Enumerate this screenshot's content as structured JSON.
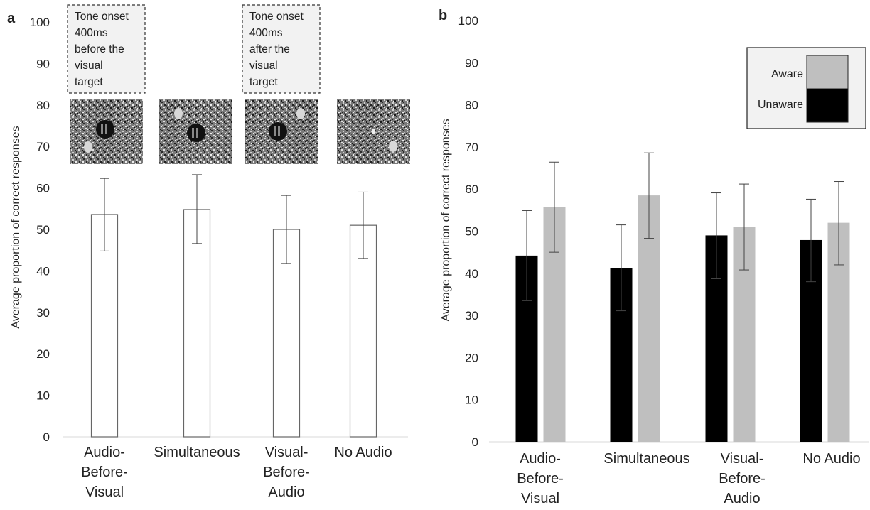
{
  "charts": {
    "a": {
      "panel_label": "a",
      "ylabel": "Average proportion of correct responses",
      "annotations": [
        {
          "lines": [
            "Tone onset",
            "400ms",
            "before the",
            "visual",
            "target"
          ]
        },
        {
          "lines": [
            "Tone onset",
            "400ms",
            "after the",
            "visual",
            "target"
          ]
        }
      ]
    },
    "b": {
      "panel_label": "b",
      "ylabel": "Average proportion of correct responses"
    }
  },
  "chart_data": [
    {
      "type": "bar",
      "panel": "a",
      "categories": [
        [
          "Audio-",
          "Before-",
          "Visual"
        ],
        [
          "Simultaneous"
        ],
        [
          "Visual-",
          "Before-",
          "Audio"
        ],
        [
          "No Audio"
        ]
      ],
      "values": [
        53.6,
        54.8,
        50.0,
        51.0
      ],
      "error": [
        [
          44.8,
          62.3
        ],
        [
          46.6,
          63.2
        ],
        [
          41.8,
          58.2
        ],
        [
          43.0,
          59.0
        ]
      ],
      "ylabel": "Average proportion of correct responses",
      "ylim": [
        0,
        100
      ],
      "yticks": [
        0,
        10,
        20,
        30,
        40,
        50,
        60,
        70,
        80,
        90,
        100
      ],
      "bar_fill": "#ffffff",
      "bar_stroke": "#666666",
      "grid": false
    },
    {
      "type": "bar",
      "panel": "b",
      "categories": [
        [
          "Audio-",
          "Before-",
          "Visual"
        ],
        [
          "Simultaneous"
        ],
        [
          "Visual-",
          "Before-",
          "Audio"
        ],
        [
          "No Audio"
        ]
      ],
      "series": [
        {
          "name": "Unaware",
          "color": "#000000",
          "values": [
            44.2,
            41.3,
            49.0,
            47.9
          ],
          "error": [
            [
              33.5,
              54.9
            ],
            [
              31.1,
              51.5
            ],
            [
              38.7,
              59.1
            ],
            [
              38.0,
              57.6
            ]
          ]
        },
        {
          "name": "Aware",
          "color": "#bfbfbf",
          "values": [
            55.7,
            58.5,
            51.0,
            52.0
          ],
          "error": [
            [
              45.0,
              66.4
            ],
            [
              48.3,
              68.6
            ],
            [
              40.8,
              61.2
            ],
            [
              42.0,
              61.8
            ]
          ]
        }
      ],
      "ylabel": "Average proportion of correct responses",
      "ylim": [
        0,
        100
      ],
      "yticks": [
        0,
        10,
        20,
        30,
        40,
        50,
        60,
        70,
        80,
        90,
        100
      ],
      "legend_position": "top-right",
      "grid": false
    }
  ]
}
